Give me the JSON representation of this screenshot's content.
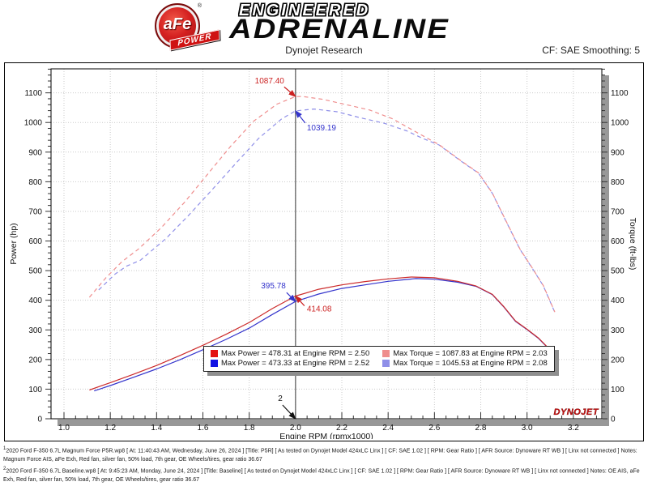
{
  "header": {
    "brand": {
      "circle_text": "aFe",
      "circle_reg": "®",
      "banner_text": "POWER",
      "line1": "ENGINEERED",
      "line2": "ADRENALINE"
    },
    "title": "Dynojet Research",
    "smoothing": "CF: SAE Smoothing: 5"
  },
  "chart_data": {
    "type": "line",
    "title": "Dynojet Research",
    "xlabel": "Engine RPM (rpmx1000)",
    "ylabel_left": "Power (hp)",
    "ylabel_right": "Torque (ft-lbs)",
    "xlim": [
      0.944,
      3.323
    ],
    "ylim": [
      0,
      1181
    ],
    "x_ticks": [
      1.0,
      1.2,
      1.4,
      1.6,
      1.8,
      2.0,
      2.2,
      2.4,
      2.6,
      2.8,
      3.0,
      3.2
    ],
    "y_ticks": [
      0,
      100,
      200,
      300,
      400,
      500,
      600,
      700,
      800,
      900,
      1000,
      1100
    ],
    "grid": true,
    "legend_position": "inside-bottom-center",
    "cursor_rpm": 2.0,
    "watermark": "DYNOJET",
    "series": [
      {
        "name": "Torque Baseline",
        "color": "#8f8fe8",
        "dash": "dashed",
        "axis": "right",
        "points": [
          [
            1.15,
            435
          ],
          [
            1.22,
            488
          ],
          [
            1.27,
            515
          ],
          [
            1.33,
            535
          ],
          [
            1.44,
            608
          ],
          [
            1.54,
            688
          ],
          [
            1.64,
            773
          ],
          [
            1.74,
            860
          ],
          [
            1.84,
            946
          ],
          [
            1.94,
            1012
          ],
          [
            2.0,
            1039.19
          ],
          [
            2.08,
            1045.53
          ],
          [
            2.18,
            1036
          ],
          [
            2.28,
            1016
          ],
          [
            2.38,
            998
          ],
          [
            2.48,
            972
          ],
          [
            2.55,
            946
          ],
          [
            2.62,
            924
          ],
          [
            2.72,
            867
          ],
          [
            2.79,
            829
          ],
          [
            2.85,
            761
          ],
          [
            2.9,
            681
          ],
          [
            2.97,
            571
          ],
          [
            3.02,
            511
          ],
          [
            3.07,
            449
          ],
          [
            3.12,
            359
          ]
        ]
      },
      {
        "name": "Torque P5R",
        "color": "#ef8d8d",
        "dash": "dashed",
        "axis": "right",
        "points": [
          [
            1.11,
            410
          ],
          [
            1.18,
            475
          ],
          [
            1.25,
            530
          ],
          [
            1.32,
            572
          ],
          [
            1.42,
            645
          ],
          [
            1.52,
            730
          ],
          [
            1.62,
            825
          ],
          [
            1.72,
            920
          ],
          [
            1.82,
            1005
          ],
          [
            1.92,
            1062
          ],
          [
            2.0,
            1087.4
          ],
          [
            2.03,
            1087.83
          ],
          [
            2.12,
            1078
          ],
          [
            2.22,
            1060
          ],
          [
            2.32,
            1042
          ],
          [
            2.42,
            1012
          ],
          [
            2.52,
            968
          ],
          [
            2.62,
            925
          ],
          [
            2.72,
            868
          ],
          [
            2.79,
            830
          ],
          [
            2.85,
            762
          ],
          [
            2.9,
            682
          ],
          [
            2.97,
            572
          ],
          [
            3.02,
            512
          ],
          [
            3.07,
            450
          ],
          [
            3.12,
            360
          ]
        ]
      },
      {
        "name": "Power Baseline",
        "color": "#3434cc",
        "dash": "solid",
        "axis": "left",
        "points": [
          [
            1.13,
            94
          ],
          [
            1.2,
            112
          ],
          [
            1.3,
            140
          ],
          [
            1.4,
            168
          ],
          [
            1.5,
            199
          ],
          [
            1.6,
            233
          ],
          [
            1.7,
            268
          ],
          [
            1.8,
            306
          ],
          [
            1.9,
            352
          ],
          [
            2.0,
            395.78
          ],
          [
            2.1,
            421
          ],
          [
            2.2,
            440
          ],
          [
            2.3,
            452
          ],
          [
            2.4,
            464
          ],
          [
            2.52,
            473.33
          ],
          [
            2.6,
            471
          ],
          [
            2.7,
            461
          ],
          [
            2.78,
            447
          ],
          [
            2.85,
            419
          ],
          [
            2.9,
            377
          ],
          [
            2.95,
            329
          ],
          [
            3.0,
            301
          ],
          [
            3.05,
            271
          ],
          [
            3.1,
            231
          ],
          [
            3.13,
            212
          ]
        ]
      },
      {
        "name": "Power P5R",
        "color": "#cc2a2a",
        "dash": "solid",
        "axis": "left",
        "points": [
          [
            1.11,
            97
          ],
          [
            1.2,
            122
          ],
          [
            1.3,
            150
          ],
          [
            1.4,
            180
          ],
          [
            1.5,
            213
          ],
          [
            1.6,
            248
          ],
          [
            1.7,
            285
          ],
          [
            1.8,
            325
          ],
          [
            1.9,
            372
          ],
          [
            2.0,
            414.08
          ],
          [
            2.1,
            437
          ],
          [
            2.2,
            452
          ],
          [
            2.3,
            463
          ],
          [
            2.4,
            472
          ],
          [
            2.5,
            478.31
          ],
          [
            2.6,
            476
          ],
          [
            2.7,
            464
          ],
          [
            2.78,
            448
          ],
          [
            2.85,
            420
          ],
          [
            2.9,
            378
          ],
          [
            2.95,
            330
          ],
          [
            3.0,
            302
          ],
          [
            3.05,
            272
          ],
          [
            3.1,
            232
          ],
          [
            3.13,
            213
          ]
        ]
      }
    ],
    "annotations": [
      {
        "text": "1087.40",
        "rpm": 2.0,
        "value": 1087.4,
        "color": "#cc2222",
        "anchor": "end",
        "text_dx": -14,
        "text_dy": -16,
        "tail_dx": -14,
        "tail_dy": -12
      },
      {
        "text": "1039.19",
        "rpm": 2.0,
        "value": 1039.19,
        "color": "#3434cc",
        "anchor": "start",
        "text_dx": 14,
        "text_dy": 24,
        "tail_dx": 12,
        "tail_dy": 15
      },
      {
        "text": "395.78",
        "rpm": 2.0,
        "value": 395.78,
        "color": "#3434cc",
        "anchor": "end",
        "text_dx": -12,
        "text_dy": -16,
        "tail_dx": -11,
        "tail_dy": -11
      },
      {
        "text": "414.08",
        "rpm": 2.0,
        "value": 414.08,
        "color": "#cc2222",
        "anchor": "start",
        "text_dx": 14,
        "text_dy": 19,
        "tail_dx": 11,
        "tail_dy": 12
      },
      {
        "text": "2",
        "rpm": 2.0,
        "value": 0,
        "color": "#111111",
        "anchor": "end",
        "text_dx": -16,
        "text_dy": -22,
        "tail_dx": -16,
        "tail_dy": -17
      }
    ],
    "legend": [
      {
        "swatch": "#e31212",
        "label": "Max Power = 478.31 at Engine RPM = 2.50"
      },
      {
        "swatch": "#ef8d8d",
        "label": "Max Torque = 1087.83 at Engine RPM = 2.03"
      },
      {
        "swatch": "#1212e3",
        "label": "Max Power = 473.33 at Engine RPM = 2.52"
      },
      {
        "swatch": "#8f8fe8",
        "label": "Max Torque = 1045.53 at Engine RPM = 2.08"
      }
    ]
  },
  "footer": {
    "runs": [
      {
        "index": "1",
        "text": "2020 Ford F-350 6.7L  Magnum Force P5R.wp8 [ At: 11:40:43 AM, Wednesday, June 26, 2024 ] [Title: P5R]  [ As tested on Dynojet Model 424xLC Linx ] [ CF: SAE 1.02 ] [ RPM: Gear Ratio ] [ AFR Source: Dynoware RT WB ] [ Linx not connected ] Notes: Magnum Force AIS, aFe Exh,  Red fan, silver fan, 50% load, 7th gear, OE Wheels/tires, gear ratio 36.67"
      },
      {
        "index": "2",
        "text": "2020 Ford F-350 6.7L Baseline.wp8 [ At: 9:45:23 AM, Monday, June 24, 2024 ] [Title: Baseline]  [ As tested on Dynojet Model 424xLC Linx ] [ CF: SAE 1.02 ] [ RPM: Gear Ratio ] [ AFR Source: Dynoware RT WB ] [ Linx not connected ] Notes: OE AIS, aFe Exh,  Red fan, silver fan, 50% load, 7th gear, OE Wheels/tires, gear ratio 36.67"
      }
    ]
  }
}
